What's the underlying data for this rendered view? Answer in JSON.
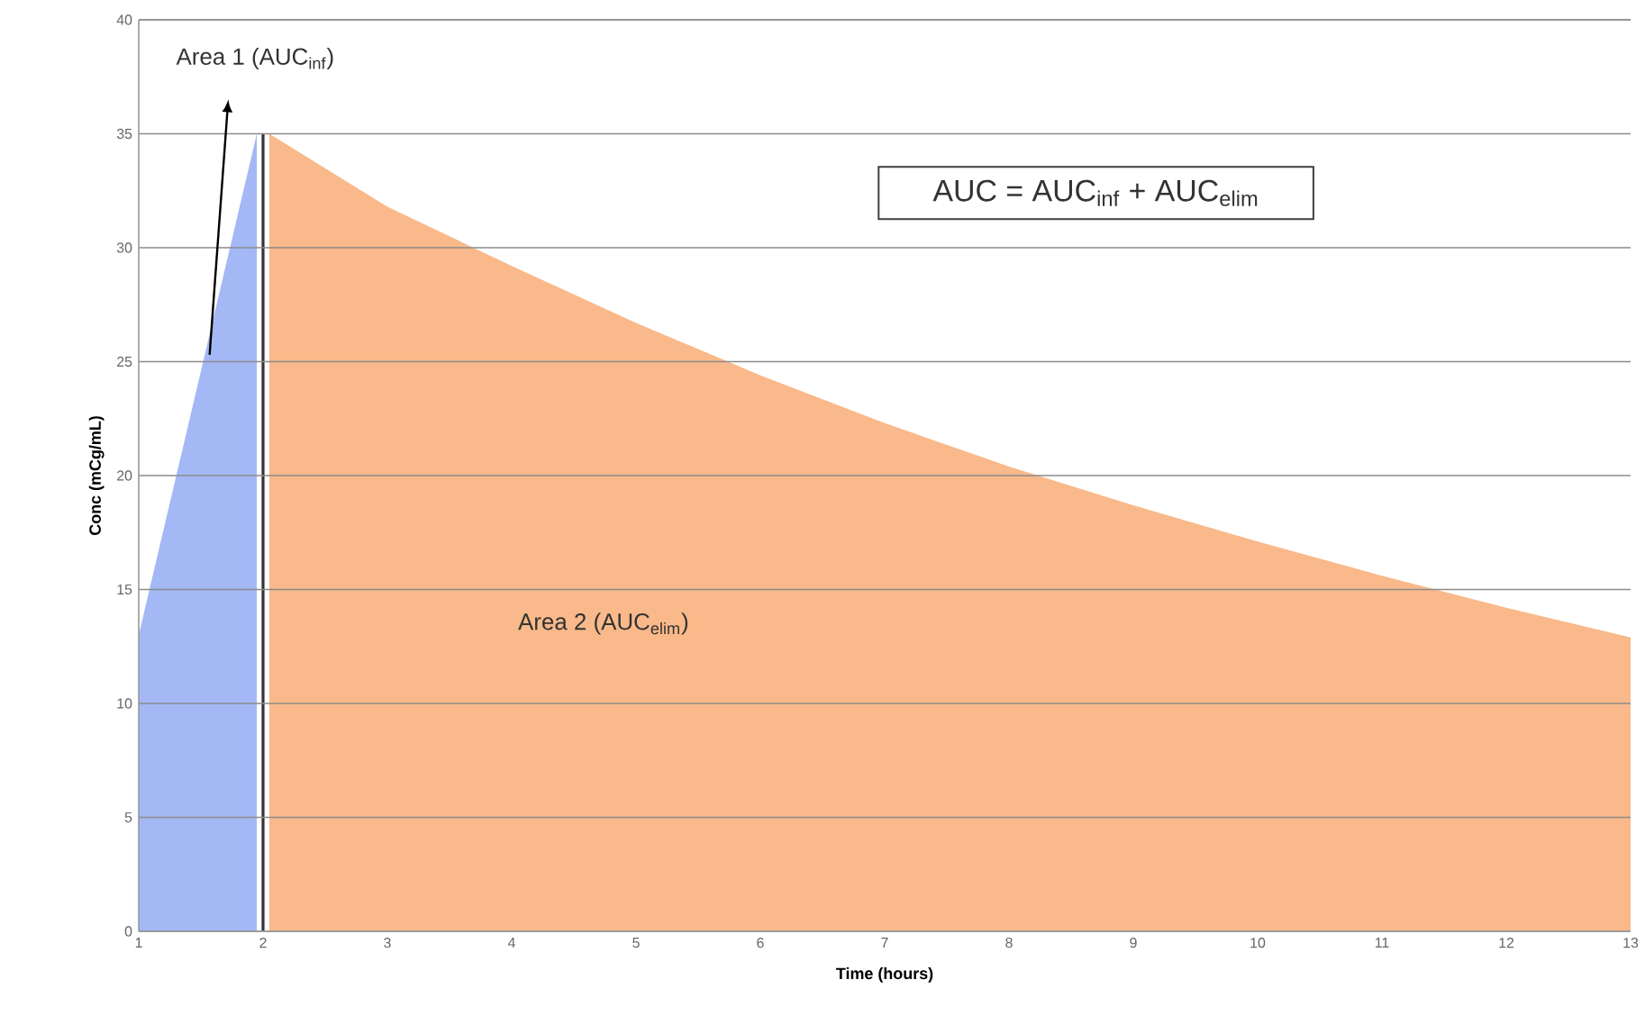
{
  "chart_data": {
    "type": "area",
    "xlabel": "Time (hours)",
    "ylabel": "Conc (mCg/mL)",
    "xlim": [
      1,
      13
    ],
    "xticks": [
      1,
      2,
      3,
      4,
      5,
      6,
      7,
      8,
      9,
      10,
      11,
      12,
      13
    ],
    "ylim": [
      0,
      40
    ],
    "yticks": [
      0,
      5,
      10,
      15,
      20,
      25,
      30,
      35,
      40
    ],
    "grid": "y",
    "series": [
      {
        "color": "#a3b8f5",
        "x": [
          1,
          1.95
        ],
        "values": [
          13,
          35
        ]
      },
      {
        "color": "#f9b98a",
        "x": [
          2.05,
          3,
          4,
          5,
          6,
          7,
          8,
          9,
          10,
          11,
          12,
          13
        ],
        "values": [
          35,
          31.8,
          29.2,
          26.7,
          24.4,
          22.3,
          20.4,
          18.7,
          17.1,
          15.6,
          14.2,
          12.9
        ]
      },
      {
        "type": "line",
        "color": "#333333",
        "x": [
          2,
          2
        ],
        "values": [
          0,
          35
        ]
      }
    ],
    "annotations": [
      "Area 1 (AUC$_{inf}$)",
      "Area 2 (AUC$_{elim}$)",
      "AUC = AUC$_{inf}$ + AUC$_{elim}$"
    ]
  }
}
